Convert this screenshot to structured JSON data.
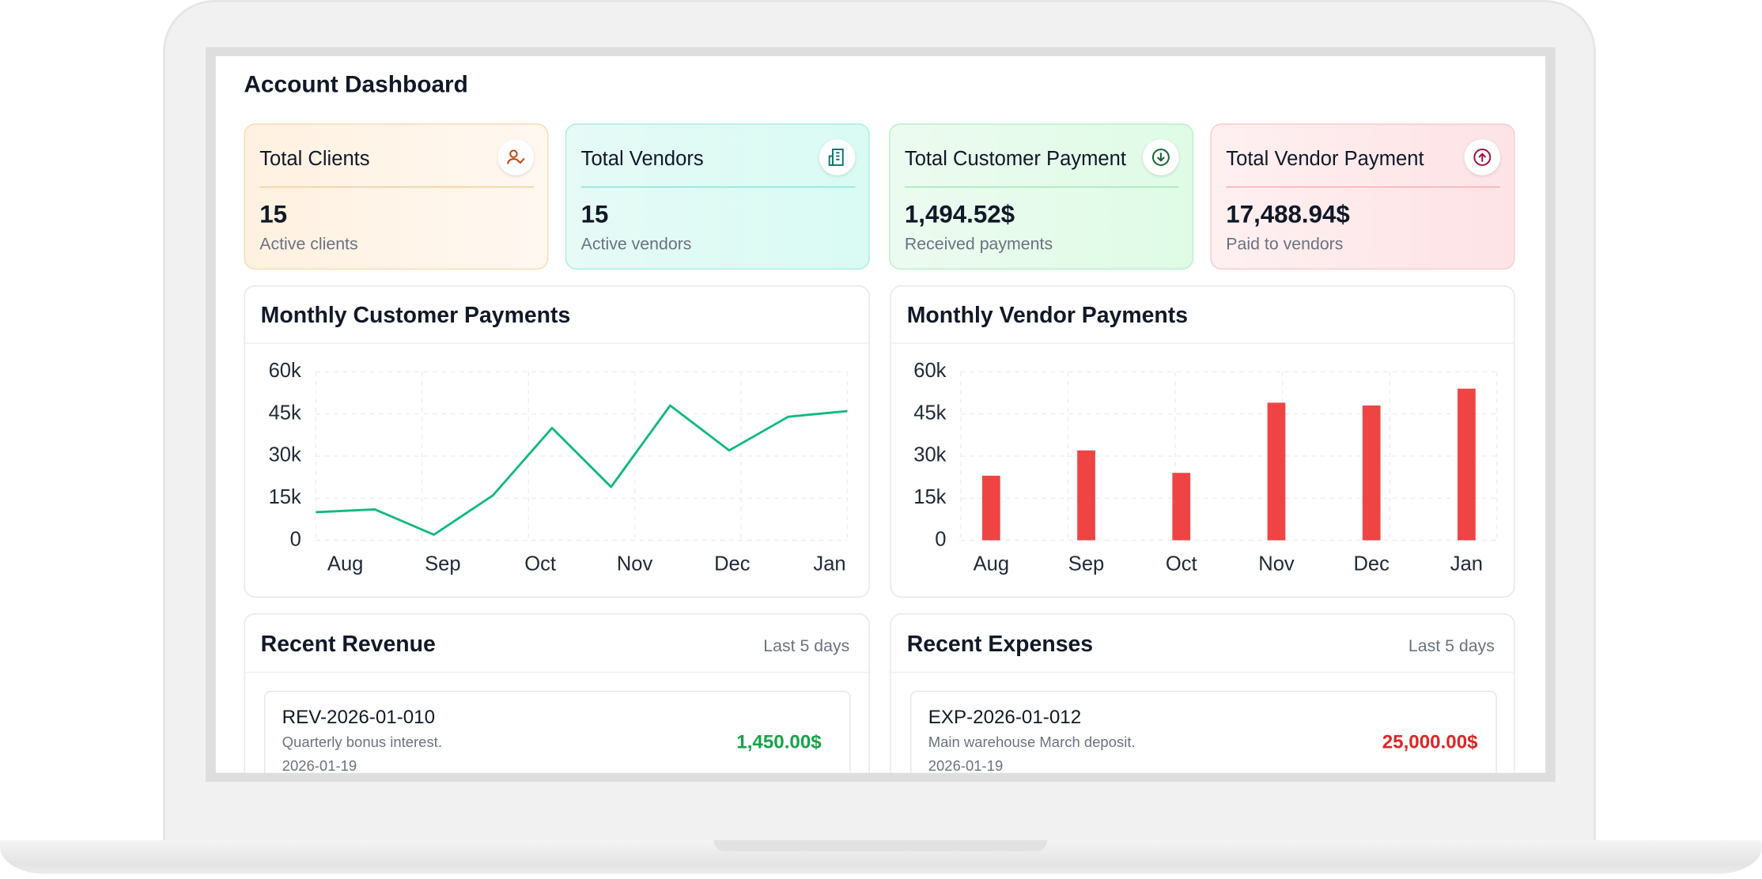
{
  "header": {
    "title": "Account Dashboard"
  },
  "cards": [
    {
      "title": "Total Clients",
      "value": "15",
      "caption": "Active clients"
    },
    {
      "title": "Total Vendors",
      "value": "15",
      "caption": "Active vendors"
    },
    {
      "title": "Total Customer Payment",
      "value": "1,494.52$",
      "caption": "Received payments"
    },
    {
      "title": "Total Vendor Payment",
      "value": "17,488.94$",
      "caption": "Paid to vendors"
    }
  ],
  "charts": [
    {
      "type": "line",
      "title": "Monthly Customer Payments",
      "values": [
        10000,
        11000,
        2000,
        16000,
        40000,
        19000,
        48000,
        32000,
        44000,
        46000
      ],
      "color": "#10b981",
      "xticks": [
        {
          "value": 0.5,
          "label": "Aug"
        },
        {
          "value": 2.15,
          "label": "Sep"
        },
        {
          "value": 3.8,
          "label": "Oct"
        },
        {
          "value": 5.4,
          "label": "Nov"
        },
        {
          "value": 7.05,
          "label": "Dec"
        },
        {
          "value": 8.7,
          "label": "Jan"
        }
      ],
      "ylim": [
        0,
        60000
      ],
      "yticks": [
        0,
        {
          "value": 15000,
          "label": "15k"
        },
        {
          "value": 30000,
          "label": "30k"
        },
        {
          "value": 45000,
          "label": "45k"
        },
        {
          "value": 60000,
          "label": "60k"
        }
      ],
      "grid": true
    },
    {
      "type": "bar",
      "title": "Monthly Vendor Payments",
      "categories": [
        "Aug",
        "Sep",
        "Oct",
        "Nov",
        "Dec",
        "Jan"
      ],
      "values": [
        23000,
        32000,
        24000,
        49000,
        48000,
        54000
      ],
      "color": "#ef4444",
      "ylim": [
        0,
        60000
      ],
      "yticks": [
        0,
        {
          "value": 15000,
          "label": "15k"
        },
        {
          "value": 30000,
          "label": "30k"
        },
        {
          "value": 45000,
          "label": "45k"
        },
        {
          "value": 60000,
          "label": "60k"
        }
      ],
      "grid": true
    }
  ],
  "revenue": {
    "title": "Recent Revenue",
    "period": "Last 5 days",
    "items": [
      {
        "id": "REV-2026-01-010",
        "description": "Quarterly bonus interest.",
        "date": "2026-01-19",
        "amount": "1,450.00$"
      }
    ]
  },
  "expenses": {
    "title": "Recent Expenses",
    "period": "Last 5 days",
    "items": [
      {
        "id": "EXP-2026-01-012",
        "description": "Main warehouse March deposit.",
        "date": "2026-01-19",
        "amount": "25,000.00$"
      }
    ]
  }
}
